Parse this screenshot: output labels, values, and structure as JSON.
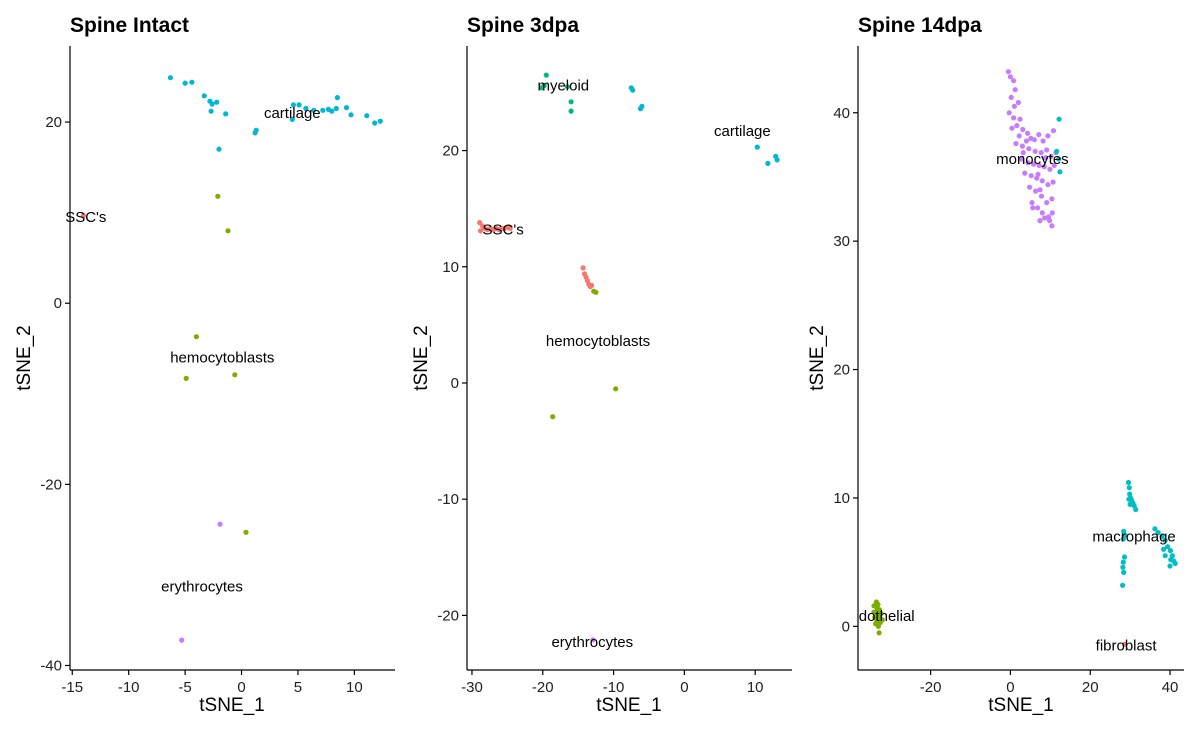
{
  "colors": {
    "SSC's": "#F8766D",
    "myeloid": "#00BA7C",
    "cartilage": "#00B8D4",
    "hemocytoblasts": "#7CAE00",
    "erythrocytes": "#C77CFF",
    "monocytes": "#C77CFF",
    "macrophage": "#00BFC4",
    "dothelial": "#7CAE00",
    "fibroblast": "#F8766D"
  },
  "chart_data": [
    {
      "type": "scatter",
      "title": "Spine Intact",
      "xlabel": "tSNE_1",
      "ylabel": "tSNE_2",
      "xlim": [
        -15.2,
        13.6
      ],
      "ylim": [
        -40.5,
        28.4
      ],
      "xticks": [
        -15,
        -10,
        -5,
        0,
        5,
        10
      ],
      "yticks": [
        -40,
        -20,
        0,
        20
      ],
      "cluster_labels": [
        {
          "text": "cartilage",
          "x": 4.5,
          "y": 21.0
        },
        {
          "text": "SSC's",
          "x": -13.8,
          "y": 9.5
        },
        {
          "text": "hemocytoblasts",
          "x": -1.7,
          "y": -6.0
        },
        {
          "text": "erythrocytes",
          "x": -3.5,
          "y": -31.3
        }
      ],
      "series": [
        {
          "cluster": "cartilage",
          "points": [
            [
              -6.3,
              24.9
            ],
            [
              -5.0,
              24.3
            ],
            [
              -4.4,
              24.4
            ],
            [
              -3.3,
              22.9
            ],
            [
              -2.8,
              22.3
            ],
            [
              -2.6,
              22.0
            ],
            [
              -2.2,
              22.2
            ],
            [
              -2.7,
              21.2
            ],
            [
              -1.4,
              20.9
            ],
            [
              1.2,
              18.8
            ],
            [
              1.3,
              19.1
            ],
            [
              4.5,
              20.3
            ],
            [
              4.6,
              21.9
            ],
            [
              5.1,
              21.9
            ],
            [
              5.7,
              21.5
            ],
            [
              6.4,
              21.3
            ],
            [
              7.2,
              21.3
            ],
            [
              7.7,
              21.4
            ],
            [
              8.0,
              21.2
            ],
            [
              8.4,
              21.5
            ],
            [
              8.5,
              22.7
            ],
            [
              9.3,
              21.6
            ],
            [
              9.7,
              20.8
            ],
            [
              11.1,
              20.7
            ],
            [
              11.8,
              19.9
            ],
            [
              12.3,
              20.1
            ],
            [
              -2.0,
              17.0
            ]
          ]
        },
        {
          "cluster": "SSC's",
          "points": [
            [
              -14.0,
              9.7
            ]
          ]
        },
        {
          "cluster": "hemocytoblasts",
          "points": [
            [
              -2.1,
              11.8
            ],
            [
              -1.2,
              8.0
            ],
            [
              -4.0,
              -3.7
            ],
            [
              -4.9,
              -8.3
            ],
            [
              -0.6,
              -7.9
            ],
            [
              0.4,
              -25.3
            ]
          ]
        },
        {
          "cluster": "erythrocytes",
          "points": [
            [
              -1.9,
              -24.4
            ],
            [
              -5.3,
              -37.2
            ]
          ]
        }
      ]
    },
    {
      "type": "scatter",
      "title": "Spine 3dpa",
      "xlabel": "tSNE_1",
      "ylabel": "tSNE_2",
      "xlim": [
        -30.7,
        15.2
      ],
      "ylim": [
        -24.7,
        29.0
      ],
      "xticks": [
        -30,
        -20,
        -10,
        0,
        10
      ],
      "yticks": [
        -20,
        -10,
        0,
        10,
        20
      ],
      "cluster_labels": [
        {
          "text": "myeloid",
          "x": -17.1,
          "y": 25.6
        },
        {
          "text": "cartilage",
          "x": 8.2,
          "y": 21.7
        },
        {
          "text": "SSC's",
          "x": -25.6,
          "y": 13.2
        },
        {
          "text": "hemocytoblasts",
          "x": -12.2,
          "y": 3.6
        },
        {
          "text": "erythrocytes",
          "x": -13.0,
          "y": -22.3
        }
      ],
      "series": [
        {
          "cluster": "myeloid",
          "points": [
            [
              -19.5,
              26.5
            ],
            [
              -20.2,
              25.4
            ],
            [
              -19.8,
              25.6
            ],
            [
              -16.5,
              25.5
            ],
            [
              -16.0,
              24.2
            ],
            [
              -16.0,
              23.4
            ]
          ]
        },
        {
          "cluster": "cartilage",
          "points": [
            [
              -7.5,
              25.4
            ],
            [
              -7.3,
              25.2
            ],
            [
              -6.2,
              23.6
            ],
            [
              -6.0,
              23.8
            ],
            [
              10.3,
              20.3
            ],
            [
              11.8,
              18.9
            ],
            [
              12.9,
              19.5
            ],
            [
              13.1,
              19.2
            ]
          ]
        },
        {
          "cluster": "SSC's",
          "points": [
            [
              -28.9,
              13.8
            ],
            [
              -28.5,
              13.5
            ],
            [
              -28.2,
              13.3
            ],
            [
              -27.8,
              13.2
            ],
            [
              -27.4,
              13.3
            ],
            [
              -27.0,
              13.2
            ],
            [
              -26.6,
              13.3
            ],
            [
              -26.2,
              13.2
            ],
            [
              -25.8,
              13.3
            ],
            [
              -25.4,
              13.3
            ],
            [
              -25.0,
              13.4
            ],
            [
              -24.6,
              13.3
            ],
            [
              -28.8,
              13.1
            ],
            [
              -14.3,
              9.9
            ],
            [
              -14.1,
              9.4
            ],
            [
              -13.9,
              9.1
            ],
            [
              -13.7,
              8.8
            ],
            [
              -13.5,
              8.5
            ],
            [
              -13.3,
              8.3
            ],
            [
              -13.1,
              8.4
            ]
          ]
        },
        {
          "cluster": "hemocytoblasts",
          "points": [
            [
              -12.8,
              7.9
            ],
            [
              -12.5,
              7.8
            ],
            [
              -9.7,
              -0.5
            ],
            [
              -18.6,
              -2.9
            ]
          ]
        },
        {
          "cluster": "erythrocytes",
          "points": [
            [
              -12.9,
              -22.1
            ]
          ]
        }
      ]
    },
    {
      "type": "scatter",
      "title": "Spine 14dpa",
      "xlabel": "tSNE_1",
      "ylabel": "tSNE_2",
      "xlim": [
        -38.2,
        43.5
      ],
      "ylim": [
        -3.4,
        45.2
      ],
      "xticks": [
        -20,
        0,
        20,
        40
      ],
      "yticks": [
        0,
        10,
        20,
        30,
        40
      ],
      "cluster_labels": [
        {
          "text": "monocytes",
          "x": 5.5,
          "y": 36.4
        },
        {
          "text": "macrophage",
          "x": 31.0,
          "y": 7.0
        },
        {
          "text": "dothelial",
          "x": -31.0,
          "y": 0.8
        },
        {
          "text": "fibroblast",
          "x": 29.0,
          "y": -1.5
        }
      ],
      "series": [
        {
          "cluster": "monocytes",
          "points": [
            [
              -0.5,
              43.2
            ],
            [
              0.0,
              42.8
            ],
            [
              0.8,
              42.5
            ],
            [
              1.2,
              41.8
            ],
            [
              0.2,
              41.2
            ],
            [
              1.0,
              40.5
            ],
            [
              -0.3,
              40.0
            ],
            [
              0.8,
              39.6
            ],
            [
              2.4,
              39.5
            ],
            [
              1.6,
              39.0
            ],
            [
              0.4,
              38.8
            ],
            [
              3.1,
              38.7
            ],
            [
              2.2,
              38.2
            ],
            [
              4.3,
              38.4
            ],
            [
              5.1,
              38.0
            ],
            [
              6.0,
              37.9
            ],
            [
              7.1,
              38.3
            ],
            [
              8.2,
              37.8
            ],
            [
              9.4,
              38.2
            ],
            [
              10.8,
              38.6
            ],
            [
              3.0,
              37.4
            ],
            [
              4.6,
              37.2
            ],
            [
              6.2,
              37.0
            ],
            [
              7.7,
              36.9
            ],
            [
              9.1,
              37.1
            ],
            [
              10.2,
              36.6
            ],
            [
              11.4,
              36.9
            ],
            [
              2.8,
              36.4
            ],
            [
              4.4,
              36.1
            ],
            [
              5.8,
              36.0
            ],
            [
              7.2,
              35.9
            ],
            [
              8.5,
              35.8
            ],
            [
              9.9,
              35.6
            ],
            [
              11.0,
              35.9
            ],
            [
              3.6,
              35.3
            ],
            [
              5.2,
              35.1
            ],
            [
              6.6,
              34.9
            ],
            [
              8.0,
              34.7
            ],
            [
              9.4,
              34.4
            ],
            [
              10.7,
              34.6
            ],
            [
              4.8,
              34.2
            ],
            [
              6.3,
              33.9
            ],
            [
              7.8,
              33.5
            ],
            [
              9.1,
              33.0
            ],
            [
              10.4,
              33.3
            ],
            [
              5.4,
              33.0
            ],
            [
              6.8,
              32.6
            ],
            [
              8.0,
              32.2
            ],
            [
              9.6,
              31.9
            ],
            [
              10.5,
              32.2
            ],
            [
              7.4,
              31.6
            ],
            [
              8.6,
              31.8
            ],
            [
              9.8,
              31.6
            ],
            [
              10.4,
              31.2
            ],
            [
              3.2,
              36.9
            ],
            [
              4.0,
              37.8
            ],
            [
              6.9,
              35.2
            ],
            [
              8.8,
              36.5
            ],
            [
              2.0,
              40.8
            ],
            [
              1.4,
              37.6
            ],
            [
              7.4,
              34.0
            ],
            [
              5.6,
              32.6
            ]
          ]
        },
        {
          "cluster": "macrophage",
          "points": [
            [
              12.2,
              39.5
            ],
            [
              11.6,
              37.0
            ],
            [
              12.1,
              36.4
            ],
            [
              12.4,
              35.4
            ],
            [
              29.6,
              11.2
            ],
            [
              29.8,
              10.8
            ],
            [
              29.9,
              10.3
            ],
            [
              30.1,
              10.0
            ],
            [
              30.4,
              9.8
            ],
            [
              30.7,
              9.6
            ],
            [
              31.0,
              9.4
            ],
            [
              31.4,
              9.1
            ],
            [
              29.7,
              9.9
            ],
            [
              30.0,
              9.5
            ],
            [
              28.4,
              7.4
            ],
            [
              28.7,
              7.1
            ],
            [
              28.3,
              6.8
            ],
            [
              36.2,
              7.6
            ],
            [
              37.0,
              7.3
            ],
            [
              38.0,
              7.0
            ],
            [
              38.8,
              6.7
            ],
            [
              39.4,
              6.2
            ],
            [
              40.1,
              5.9
            ],
            [
              40.6,
              5.5
            ],
            [
              40.9,
              5.1
            ],
            [
              41.3,
              4.9
            ],
            [
              40.2,
              5.2
            ],
            [
              40.0,
              4.7
            ],
            [
              38.8,
              5.5
            ],
            [
              38.4,
              6.0
            ],
            [
              28.6,
              5.4
            ],
            [
              28.3,
              5.0
            ],
            [
              28.2,
              4.6
            ],
            [
              28.4,
              4.2
            ],
            [
              28.1,
              3.2
            ]
          ]
        },
        {
          "cluster": "dothelial",
          "points": [
            [
              -34.2,
              1.6
            ],
            [
              -33.6,
              1.9
            ],
            [
              -33.2,
              1.7
            ],
            [
              -32.8,
              1.3
            ],
            [
              -33.6,
              1.0
            ],
            [
              -34.0,
              0.7
            ],
            [
              -33.5,
              0.4
            ],
            [
              -32.9,
              0.7
            ],
            [
              -32.4,
              1.0
            ],
            [
              -32.1,
              0.5
            ],
            [
              -33.8,
              0.2
            ],
            [
              -33.1,
              0.0
            ],
            [
              -32.6,
              0.3
            ],
            [
              -34.2,
              1.1
            ],
            [
              -32.9,
              -0.5
            ],
            [
              -33.4,
              1.4
            ]
          ]
        },
        {
          "cluster": "fibroblast",
          "points": [
            [
              28.6,
              -1.4
            ]
          ]
        }
      ]
    }
  ]
}
